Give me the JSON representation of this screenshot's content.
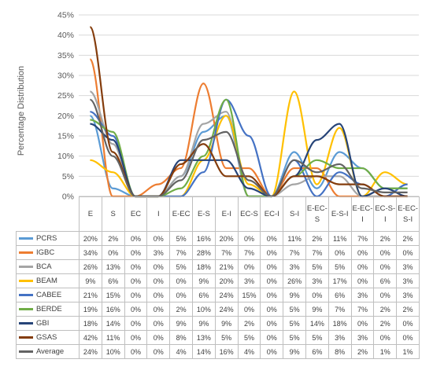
{
  "chart_data": {
    "type": "line",
    "title": "",
    "xlabel": "",
    "ylabel": "Percentage Distribution",
    "ylim": [
      0,
      45
    ],
    "yticks": [
      "0%",
      "5%",
      "10%",
      "15%",
      "20%",
      "25%",
      "30%",
      "35%",
      "40%",
      "45%"
    ],
    "grid": true,
    "legend": "data-table",
    "categories": [
      "E",
      "S",
      "EC",
      "I",
      "E-EC",
      "E-S",
      "E-I",
      "EC-S",
      "EC-I",
      "S-I",
      "E-EC-S",
      "E-S-I",
      "E-EC-I",
      "EC-S-I",
      "E-EC-S-I"
    ],
    "series": [
      {
        "name": "PCRS",
        "color": "#5b9bd5",
        "values": [
          20,
          2,
          0,
          0,
          5,
          16,
          20,
          0,
          0,
          11,
          2,
          11,
          7,
          2,
          2
        ],
        "labels": [
          "20%",
          "2%",
          "0%",
          "0%",
          "5%",
          "16%",
          "20%",
          "0%",
          "0%",
          "11%",
          "2%",
          "11%",
          "7%",
          "2%",
          "2%"
        ]
      },
      {
        "name": "IGBC",
        "color": "#ed7d31",
        "values": [
          34,
          0,
          0,
          3,
          7,
          28,
          7,
          7,
          0,
          7,
          7,
          0,
          0,
          0,
          0
        ],
        "labels": [
          "34%",
          "0%",
          "0%",
          "3%",
          "7%",
          "28%",
          "7%",
          "7%",
          "0%",
          "7%",
          "7%",
          "0%",
          "0%",
          "0%",
          "0%"
        ]
      },
      {
        "name": "BCA",
        "color": "#a5a5a5",
        "values": [
          26,
          13,
          0,
          0,
          5,
          18,
          21,
          0,
          0,
          3,
          5,
          5,
          0,
          0,
          3
        ],
        "labels": [
          "26%",
          "13%",
          "0%",
          "0%",
          "5%",
          "18%",
          "21%",
          "0%",
          "0%",
          "3%",
          "5%",
          "5%",
          "0%",
          "0%",
          "3%"
        ]
      },
      {
        "name": "BEAM",
        "color": "#ffc000",
        "values": [
          9,
          6,
          0,
          0,
          0,
          9,
          20,
          3,
          0,
          26,
          3,
          17,
          0,
          6,
          3
        ],
        "labels": [
          "9%",
          "6%",
          "0%",
          "0%",
          "0%",
          "9%",
          "20%",
          "3%",
          "0%",
          "26%",
          "3%",
          "17%",
          "0%",
          "6%",
          "3%"
        ]
      },
      {
        "name": "CABEE",
        "color": "#4472c4",
        "values": [
          21,
          15,
          0,
          0,
          0,
          6,
          24,
          15,
          0,
          9,
          0,
          6,
          3,
          0,
          3
        ],
        "labels": [
          "21%",
          "15%",
          "0%",
          "0%",
          "0%",
          "6%",
          "24%",
          "15%",
          "0%",
          "9%",
          "0%",
          "6%",
          "3%",
          "0%",
          "3%"
        ]
      },
      {
        "name": "BERDE",
        "color": "#70ad47",
        "values": [
          19,
          16,
          0,
          0,
          2,
          10,
          24,
          0,
          0,
          5,
          9,
          7,
          7,
          2,
          2
        ],
        "labels": [
          "19%",
          "16%",
          "0%",
          "0%",
          "2%",
          "10%",
          "24%",
          "0%",
          "0%",
          "5%",
          "9%",
          "7%",
          "7%",
          "2%",
          "2%"
        ]
      },
      {
        "name": "GBI",
        "color": "#264478",
        "values": [
          18,
          14,
          0,
          0,
          9,
          9,
          9,
          2,
          0,
          5,
          14,
          18,
          0,
          2,
          0
        ],
        "labels": [
          "18%",
          "14%",
          "0%",
          "0%",
          "9%",
          "9%",
          "9%",
          "2%",
          "0%",
          "5%",
          "14%",
          "18%",
          "0%",
          "2%",
          "0%"
        ]
      },
      {
        "name": "GSAS",
        "color": "#843c0c",
        "values": [
          42,
          11,
          0,
          0,
          8,
          13,
          5,
          5,
          0,
          5,
          5,
          3,
          3,
          0,
          0
        ],
        "labels": [
          "42%",
          "11%",
          "0%",
          "0%",
          "8%",
          "13%",
          "5%",
          "5%",
          "0%",
          "5%",
          "5%",
          "3%",
          "3%",
          "0%",
          "0%"
        ]
      },
      {
        "name": "Average",
        "color": "#636363",
        "values": [
          24,
          10,
          0,
          0,
          4,
          14,
          16,
          4,
          0,
          9,
          6,
          8,
          2,
          1,
          1
        ],
        "labels": [
          "24%",
          "10%",
          "0%",
          "0%",
          "4%",
          "14%",
          "16%",
          "4%",
          "0%",
          "9%",
          "6%",
          "8%",
          "2%",
          "1%",
          "1%"
        ]
      }
    ]
  }
}
